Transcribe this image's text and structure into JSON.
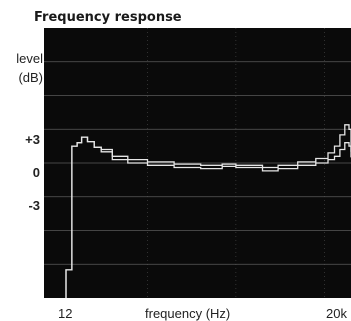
{
  "chart_data": {
    "type": "line",
    "title": "Frequency response",
    "ylabel_line1": "level",
    "ylabel_line2": "(dB)",
    "xlabel": "frequency (Hz)",
    "ytick_labels": [
      "+3",
      "0",
      "-3"
    ],
    "ytick_values": [
      3,
      0,
      -3
    ],
    "xtick_labels": [
      "12",
      "20k"
    ],
    "ylim": [
      -12,
      12
    ],
    "grid": true,
    "background": "#0a0a0a",
    "grid_color": "#5a5a5a",
    "line_color": "#e6e6e6",
    "series": [
      {
        "x": [
          12,
          14,
          16,
          18,
          21,
          25,
          30,
          40,
          60,
          100,
          200,
          400,
          700,
          1000,
          2000,
          3000,
          5000,
          8000,
          11000,
          13000,
          15000,
          17000,
          19000,
          20000
        ],
        "y": [
          -9.5,
          1.5,
          1.8,
          2.3,
          1.9,
          1.4,
          1.2,
          0.6,
          0.3,
          0.1,
          -0.1,
          -0.2,
          -0.1,
          -0.2,
          -0.4,
          -0.2,
          0.1,
          0.4,
          0.9,
          1.5,
          2.5,
          3.4,
          3.0,
          1.0
        ]
      },
      {
        "x": [
          12,
          14,
          16,
          18,
          21,
          25,
          30,
          40,
          60,
          100,
          200,
          400,
          700,
          1000,
          2000,
          3000,
          5000,
          8000,
          11000,
          13000,
          15000,
          17000,
          19000,
          20000
        ],
        "y": [
          -9.5,
          1.5,
          1.8,
          2.3,
          1.9,
          1.4,
          1.0,
          0.3,
          0.0,
          -0.2,
          -0.4,
          -0.5,
          -0.3,
          -0.4,
          -0.7,
          -0.5,
          -0.2,
          0.0,
          0.3,
          0.6,
          1.2,
          1.8,
          1.5,
          0.5
        ]
      }
    ]
  }
}
